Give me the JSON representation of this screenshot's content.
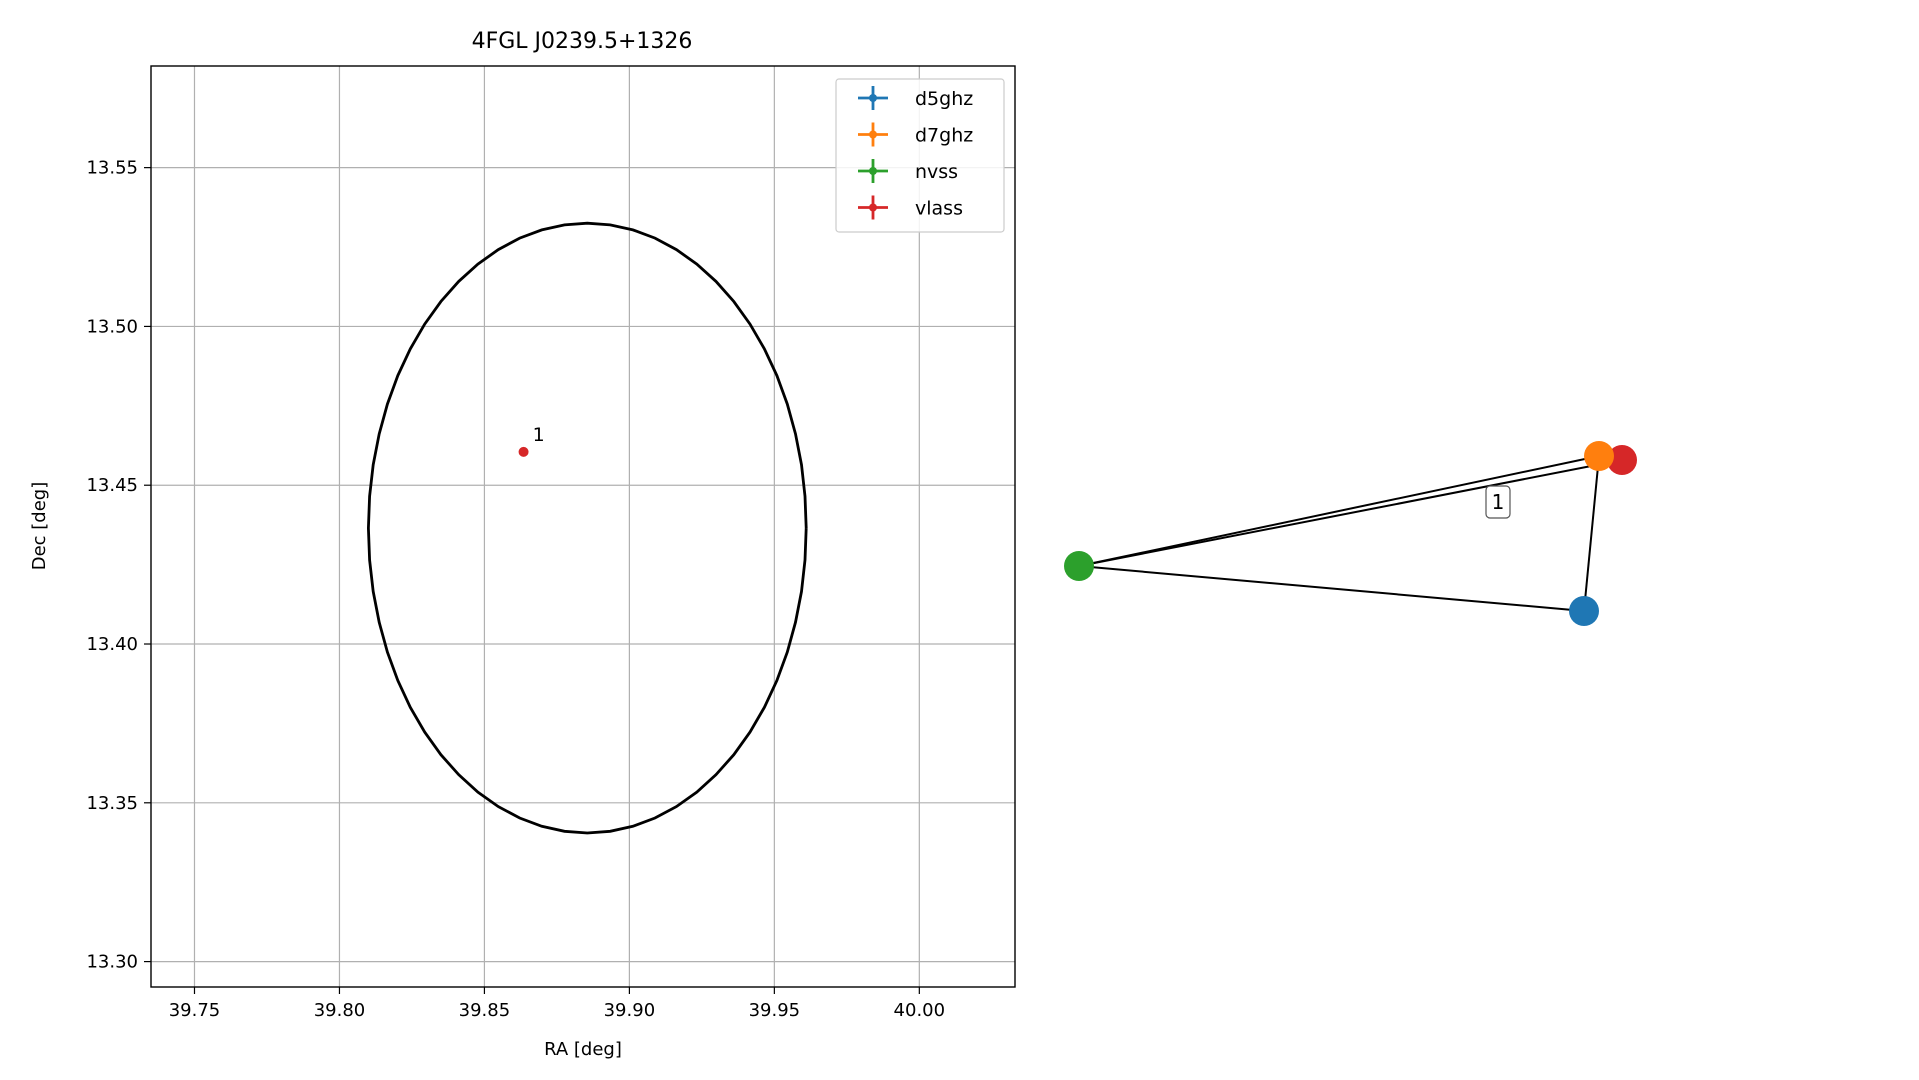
{
  "chart_data": [
    {
      "type": "scatter",
      "title": "4FGL J0239.5+1326",
      "xlabel": "RA [deg]",
      "ylabel": "Dec [deg]",
      "xlim": [
        39.735,
        40.033
      ],
      "ylim": [
        13.292,
        13.582
      ],
      "xticks": [
        39.75,
        39.8,
        39.85,
        39.9,
        39.95,
        40.0
      ],
      "xtick_labels": [
        "39.75",
        "39.80",
        "39.85",
        "39.90",
        "39.95",
        "40.00"
      ],
      "yticks": [
        13.3,
        13.35,
        13.4,
        13.45,
        13.5,
        13.55
      ],
      "ytick_labels": [
        "13.30",
        "13.35",
        "13.40",
        "13.45",
        "13.50",
        "13.55"
      ],
      "grid": true,
      "legend": {
        "placement": "top-right",
        "entries": [
          {
            "label": "d5ghz",
            "color": "#1f77b4"
          },
          {
            "label": "d7ghz",
            "color": "#ff7f0e"
          },
          {
            "label": "nvss",
            "color": "#2ca02c"
          },
          {
            "label": "vlass",
            "color": "#d62728"
          }
        ]
      },
      "ellipse": {
        "center": [
          39.8855,
          13.4365
        ],
        "half_width_ra": 0.0755,
        "half_height_dec": 0.096,
        "color": "#000000"
      },
      "points": [
        {
          "label": "1",
          "x": 39.8635,
          "y": 13.4605,
          "color": "#d62728"
        }
      ]
    },
    {
      "type": "network",
      "edge_label": "1",
      "nodes": [
        {
          "name": "nvss",
          "color": "#2ca02c"
        },
        {
          "name": "d7ghz",
          "color": "#ff7f0e"
        },
        {
          "name": "vlass",
          "color": "#d62728"
        },
        {
          "name": "d5ghz",
          "color": "#1f77b4"
        }
      ],
      "edges": [
        [
          "nvss",
          "d7ghz"
        ],
        [
          "nvss",
          "vlass"
        ],
        [
          "nvss",
          "d5ghz"
        ],
        [
          "d7ghz",
          "d5ghz"
        ],
        [
          "d7ghz",
          "vlass"
        ]
      ]
    }
  ]
}
